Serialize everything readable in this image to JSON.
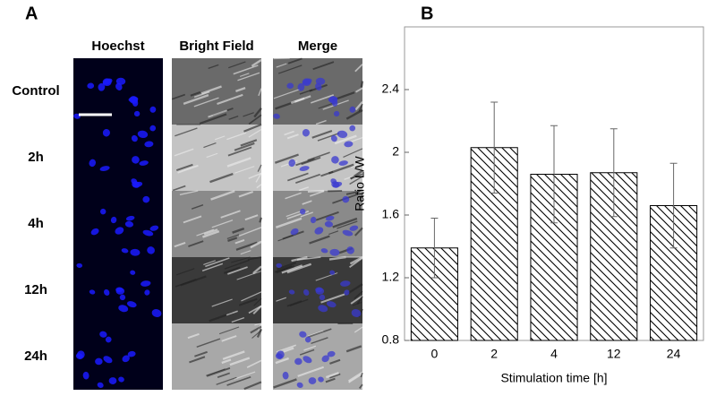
{
  "panel_a": {
    "label": "A",
    "columns": [
      "Hoechst",
      "Bright Field",
      "Merge"
    ],
    "rows": [
      "Control",
      "2h",
      "4h",
      "12h",
      "24h"
    ]
  },
  "chart_data": {
    "type": "bar",
    "panel_label": "B",
    "ylabel": "Ratio L/W",
    "xlabel": "Stimulation time [h]",
    "categories": [
      "0",
      "2",
      "4",
      "12",
      "24"
    ],
    "values": [
      1.39,
      2.03,
      1.86,
      1.87,
      1.66
    ],
    "errors": [
      0.19,
      0.29,
      0.31,
      0.28,
      0.27
    ],
    "color": "#000000",
    "hatch": true,
    "ylim": [
      0.8,
      2.8
    ],
    "yticks": [
      0.8,
      1.2,
      1.6,
      2,
      2.4
    ]
  }
}
